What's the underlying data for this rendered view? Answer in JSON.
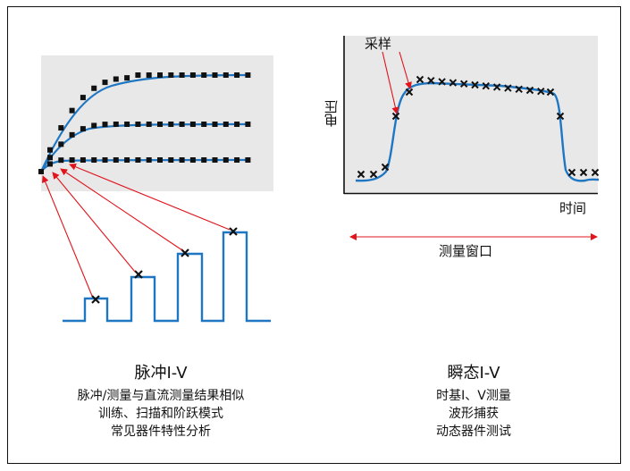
{
  "pulse": {
    "title": "脉冲I-V",
    "lines": [
      "脉冲/测量与直流测量结果相似",
      "训练、扫描和阶跃模式",
      "常见器件特性分析"
    ]
  },
  "transient": {
    "title": "瞬态I-V",
    "lines": [
      "时基I、V测量",
      "波形捕获",
      "动态器件测试"
    ],
    "sample_label": "采样",
    "y_label": "电压",
    "x_label": "时间",
    "window_label": "测量窗口"
  },
  "colors": {
    "curve": "#1f77c4",
    "arrow": "#e0141b",
    "panel": "#e8e8e8",
    "marker": "#111111"
  }
}
